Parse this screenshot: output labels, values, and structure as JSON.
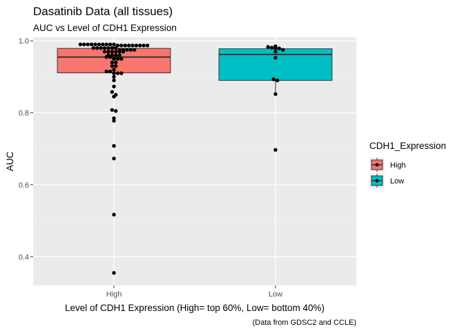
{
  "chart_data": {
    "type": "boxplot",
    "title": "Dasatinib Data (all tissues)",
    "subtitle": "AUC vs Level of CDH1 Expression",
    "xlabel": "Level of CDH1 Expression (High= top 60%, Low= bottom 40%)",
    "ylabel": "AUC",
    "caption": "(Data from GDSC2 and CCLE)",
    "categories": [
      "High",
      "Low"
    ],
    "ylim": [
      0.32,
      1.01
    ],
    "yticks": [
      0.4,
      0.6,
      0.8,
      1.0
    ],
    "ytick_labels": [
      "0.4",
      "0.6",
      "0.8",
      "1.0"
    ],
    "grid": true,
    "legend": {
      "title": "CDH1_Expression",
      "position": "right",
      "entries": [
        {
          "label": "High",
          "color": "#F8766D"
        },
        {
          "label": "Low",
          "color": "#00BFC4"
        }
      ]
    },
    "series": [
      {
        "name": "High",
        "color": "#F8766D",
        "box": {
          "lower_whisker": 0.89,
          "q1": 0.911,
          "median": 0.955,
          "q3": 0.979,
          "upper_whisker": 0.99
        },
        "points": [
          0.99,
          0.99,
          0.99,
          0.99,
          0.99,
          0.99,
          0.99,
          0.99,
          0.99,
          0.99,
          0.987,
          0.987,
          0.987,
          0.987,
          0.987,
          0.987,
          0.987,
          0.987,
          0.987,
          0.98,
          0.98,
          0.98,
          0.98,
          0.98,
          0.98,
          0.98,
          0.975,
          0.975,
          0.975,
          0.975,
          0.975,
          0.97,
          0.97,
          0.97,
          0.97,
          0.97,
          0.97,
          0.96,
          0.96,
          0.96,
          0.96,
          0.955,
          0.955,
          0.95,
          0.95,
          0.95,
          0.94,
          0.94,
          0.93,
          0.93,
          0.92,
          0.915,
          0.915,
          0.91,
          0.91,
          0.91,
          0.9,
          0.89,
          0.873,
          0.858,
          0.85,
          0.845,
          0.808,
          0.805,
          0.785,
          0.778,
          0.708,
          0.673,
          0.517,
          0.355
        ]
      },
      {
        "name": "Low",
        "color": "#00BFC4",
        "box": {
          "lower_whisker": 0.852,
          "q1": 0.89,
          "median": 0.962,
          "q3": 0.978,
          "upper_whisker": 0.985
        },
        "points": [
          0.985,
          0.983,
          0.981,
          0.98,
          0.979,
          0.975,
          0.97,
          0.953,
          0.893,
          0.89,
          0.852,
          0.697
        ]
      }
    ]
  }
}
